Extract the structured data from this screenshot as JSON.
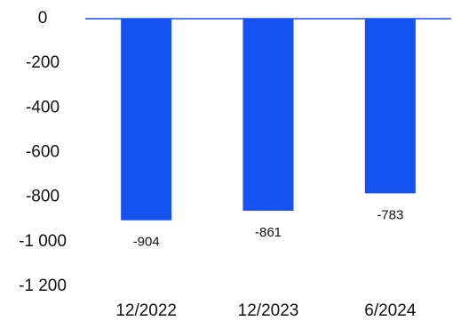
{
  "chart_data": {
    "type": "bar",
    "title": "",
    "xlabel": "",
    "ylabel": "",
    "categories": [
      "12/2022",
      "12/2023",
      "6/2024"
    ],
    "values": [
      -904,
      -861,
      -783
    ],
    "data_labels": [
      "-904",
      "-861",
      "-783"
    ],
    "ylim": [
      -1200,
      0
    ],
    "yticks": [
      0,
      -200,
      -400,
      -600,
      -800,
      -1000,
      -1200
    ],
    "ytick_labels": [
      "0",
      "-200",
      "-400",
      "-600",
      "-800",
      "-1 000",
      "-1 200"
    ],
    "grid": false,
    "legend": "none",
    "colors": {
      "bar": "#1652F0",
      "baseline": "#1652F0",
      "text": "#111111"
    }
  }
}
